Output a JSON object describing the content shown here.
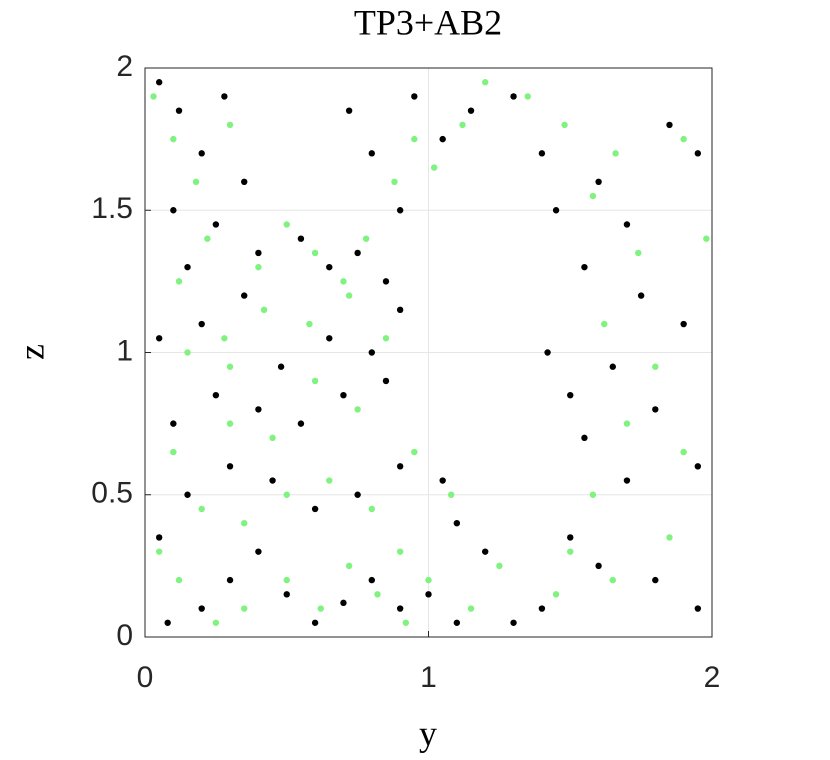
{
  "chart_data": {
    "type": "scatter",
    "title": "TP3+AB2",
    "x_label": "y",
    "y_label": "z",
    "xlim": [
      0,
      2
    ],
    "ylim": [
      0,
      2
    ],
    "xticks": [
      0,
      1,
      2
    ],
    "yticks": [
      0,
      0.5,
      1,
      1.5,
      2
    ],
    "grid": true,
    "series": [
      {
        "color": "#7ff27f",
        "x": [
          0.03,
          0.1,
          0.18,
          0.3,
          0.22,
          0.4,
          0.5,
          0.6,
          0.7,
          0.78,
          0.88,
          0.95,
          1.02,
          1.12,
          1.2,
          1.35,
          1.48,
          1.58,
          1.66,
          1.74,
          1.9,
          1.98,
          1.62,
          1.8,
          1.7,
          1.9,
          1.58,
          1.5,
          1.65,
          1.85,
          1.45,
          1.25,
          1.15,
          1.0,
          0.92,
          0.82,
          0.72,
          0.62,
          0.5,
          0.35,
          0.25,
          0.12,
          0.05,
          0.2,
          0.35,
          0.5,
          0.65,
          0.8,
          0.95,
          1.08,
          0.1,
          0.3,
          0.45,
          0.6,
          0.75,
          0.15,
          0.28,
          0.42,
          0.58,
          0.72,
          0.85,
          0.12,
          0.3,
          0.9
        ],
        "y": [
          1.9,
          1.75,
          1.6,
          1.8,
          1.4,
          1.3,
          1.45,
          1.35,
          1.25,
          1.4,
          1.6,
          1.75,
          1.65,
          1.8,
          1.95,
          1.9,
          1.8,
          1.55,
          1.7,
          1.35,
          1.75,
          1.4,
          1.1,
          0.95,
          0.75,
          0.65,
          0.5,
          0.3,
          0.2,
          0.35,
          0.15,
          0.25,
          0.1,
          0.2,
          0.05,
          0.15,
          0.25,
          0.1,
          0.2,
          0.1,
          0.05,
          0.2,
          0.3,
          0.45,
          0.4,
          0.5,
          0.55,
          0.45,
          0.65,
          0.5,
          0.65,
          0.75,
          0.7,
          0.9,
          0.8,
          1.0,
          1.05,
          1.15,
          1.1,
          1.2,
          1.05,
          1.25,
          0.95,
          0.3
        ]
      },
      {
        "color": "#000000",
        "x": [
          0.05,
          0.12,
          0.2,
          0.28,
          0.35,
          0.1,
          0.25,
          0.4,
          0.55,
          0.65,
          0.75,
          0.85,
          0.9,
          0.8,
          0.72,
          0.95,
          1.05,
          1.15,
          1.3,
          1.4,
          1.45,
          1.55,
          1.6,
          1.7,
          1.85,
          1.95,
          1.75,
          1.9,
          1.65,
          1.8,
          1.55,
          1.95,
          1.7,
          1.5,
          1.6,
          1.8,
          1.95,
          1.4,
          1.3,
          1.1,
          1.0,
          0.9,
          0.8,
          0.7,
          0.6,
          0.5,
          0.4,
          0.3,
          0.2,
          0.08,
          0.05,
          0.15,
          0.3,
          0.45,
          0.6,
          0.75,
          0.9,
          1.05,
          1.1,
          0.1,
          0.25,
          0.4,
          0.55,
          0.7,
          0.85,
          0.05,
          0.2,
          0.35,
          0.65,
          0.8,
          0.9,
          0.15,
          0.48,
          1.2,
          1.42,
          1.5
        ],
        "y": [
          1.95,
          1.85,
          1.7,
          1.9,
          1.6,
          1.5,
          1.45,
          1.35,
          1.4,
          1.3,
          1.35,
          1.25,
          1.5,
          1.7,
          1.85,
          1.9,
          1.75,
          1.85,
          1.9,
          1.7,
          1.5,
          1.3,
          1.6,
          1.45,
          1.8,
          1.7,
          1.2,
          1.1,
          0.95,
          0.8,
          0.7,
          0.6,
          0.55,
          0.35,
          0.25,
          0.2,
          0.1,
          0.1,
          0.05,
          0.05,
          0.15,
          0.1,
          0.2,
          0.12,
          0.05,
          0.15,
          0.3,
          0.2,
          0.1,
          0.05,
          0.35,
          0.5,
          0.6,
          0.55,
          0.45,
          0.5,
          0.6,
          0.55,
          0.4,
          0.75,
          0.85,
          0.8,
          0.75,
          0.85,
          0.9,
          1.05,
          1.1,
          1.2,
          1.05,
          1.0,
          1.15,
          1.3,
          0.95,
          0.3,
          1.0,
          0.85
        ]
      }
    ]
  }
}
